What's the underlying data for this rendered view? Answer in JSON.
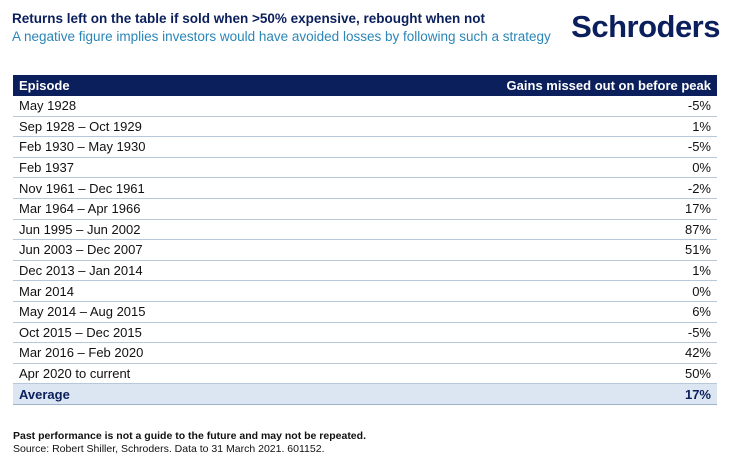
{
  "header": {
    "title": "Returns left on the table if sold when >50% expensive, rebought when not",
    "subtitle": "A negative figure implies investors would have avoided losses by following such a strategy",
    "logo": "Schroders"
  },
  "chart_data": {
    "type": "table",
    "columns": [
      "Episode",
      "Gains missed out on before peak"
    ],
    "rows": [
      [
        "May 1928",
        "-5%"
      ],
      [
        "Sep 1928 – Oct 1929",
        "1%"
      ],
      [
        "Feb 1930 – May 1930",
        "-5%"
      ],
      [
        "Feb 1937",
        "0%"
      ],
      [
        "Nov 1961 – Dec 1961",
        "-2%"
      ],
      [
        "Mar 1964 – Apr 1966",
        "17%"
      ],
      [
        "Jun 1995 – Jun 2002",
        "87%"
      ],
      [
        "Jun 2003 – Dec 2007",
        "51%"
      ],
      [
        "Dec 2013 – Jan 2014",
        "1%"
      ],
      [
        "Mar 2014",
        "0%"
      ],
      [
        "May 2014 – Aug 2015",
        "6%"
      ],
      [
        "Oct 2015 – Dec 2015",
        "-5%"
      ],
      [
        "Mar 2016 – Feb 2020",
        "42%"
      ],
      [
        "Apr 2020 to current",
        "50%"
      ]
    ],
    "summary": [
      "Average",
      "17%"
    ]
  },
  "footer": {
    "note": "Past performance is not a guide to the future and may not be repeated.",
    "source": "Source: Robert Shiller, Schroders. Data to 31 March 2021. 601152."
  },
  "colors": {
    "navy": "#0b1f5c",
    "accent_blue": "#2a86b8",
    "average_fill": "#dce6f2",
    "row_divider": "#b9c8d8"
  }
}
